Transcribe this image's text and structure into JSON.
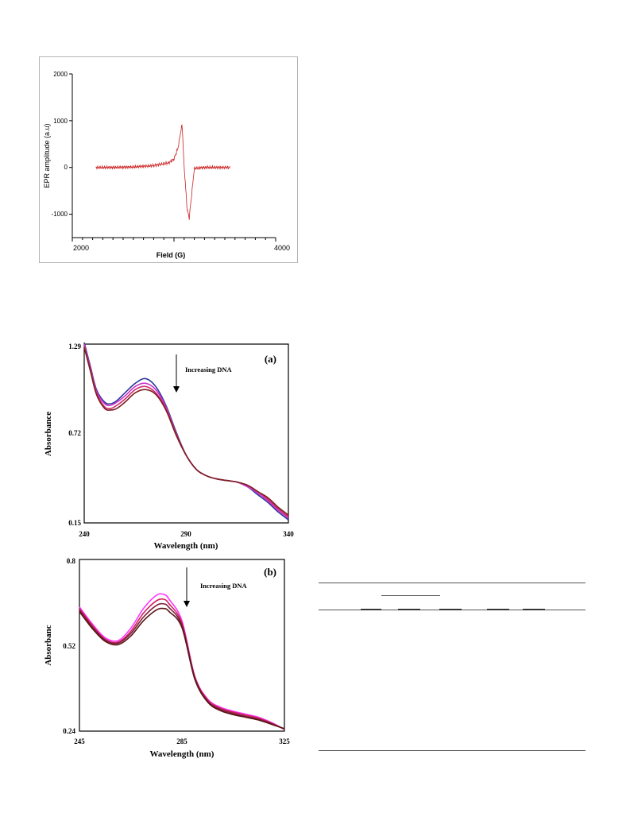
{
  "epr_chart": {
    "ylabel": "EPR amplitude (a.u)",
    "xlabel": "Field (G)",
    "xticks": [
      "2000",
      "4000"
    ],
    "yticks": [
      "2000",
      "1000",
      "0",
      "-1000"
    ],
    "color": "#cc1f1f"
  },
  "uv_a": {
    "tag": "(a)",
    "annotation": "Increasing DNA",
    "ylabel": "Absorbance",
    "xlabel": "Wavelength (nm)",
    "xticks": [
      "240",
      "290",
      "340"
    ],
    "yticks": [
      "1.29",
      "0.72",
      "0.15"
    ]
  },
  "uv_b": {
    "tag": "(b)",
    "annotation": "Increasing DNA",
    "ylabel": "Absorbanc",
    "xlabel": "Wavelength (nm)",
    "xticks": [
      "245",
      "285",
      "325"
    ],
    "yticks": [
      "0.8",
      "0.52",
      "0.24"
    ]
  },
  "chart_data": [
    {
      "type": "line",
      "xlabel": "Field (G)",
      "ylabel": "EPR amplitude (a.u)",
      "xlim": [
        2000,
        4000
      ],
      "ylim": [
        -1500,
        2000
      ],
      "series": [
        {
          "x": [
            2230,
            2400,
            2600,
            2800,
            2950,
            3000,
            3040,
            3060,
            3080,
            3100,
            3130,
            3150,
            3200,
            3300,
            3400,
            3550
          ],
          "y": [
            0,
            0,
            10,
            40,
            100,
            180,
            420,
            680,
            930,
            0,
            -900,
            -1080,
            -20,
            0,
            0,
            0
          ]
        }
      ]
    },
    {
      "type": "line",
      "xlabel": "Wavelength (nm)",
      "ylabel": "Absorbance",
      "xlim": [
        240,
        340
      ],
      "ylim": [
        0.15,
        1.29
      ],
      "x": [
        240,
        243,
        246,
        250,
        253,
        256,
        260,
        265,
        270,
        275,
        280,
        285,
        290,
        295,
        300,
        305,
        310,
        315,
        320,
        325,
        330,
        335,
        340
      ],
      "series": [
        {
          "color": "#2a3a9a",
          "values": [
            1.3,
            1.15,
            1.0,
            0.92,
            0.91,
            0.93,
            0.98,
            1.04,
            1.07,
            1.02,
            0.9,
            0.73,
            0.58,
            0.49,
            0.45,
            0.43,
            0.42,
            0.41,
            0.38,
            0.33,
            0.28,
            0.22,
            0.17
          ]
        },
        {
          "color": "#cc33cc",
          "values": [
            1.29,
            1.14,
            0.99,
            0.91,
            0.9,
            0.92,
            0.96,
            1.02,
            1.04,
            1.0,
            0.89,
            0.72,
            0.58,
            0.49,
            0.45,
            0.43,
            0.42,
            0.41,
            0.38,
            0.34,
            0.29,
            0.23,
            0.18
          ]
        },
        {
          "color": "#d02a6e",
          "values": [
            1.28,
            1.13,
            0.98,
            0.89,
            0.88,
            0.9,
            0.94,
            1.0,
            1.02,
            0.98,
            0.88,
            0.72,
            0.58,
            0.49,
            0.45,
            0.43,
            0.42,
            0.41,
            0.39,
            0.35,
            0.3,
            0.24,
            0.19
          ]
        },
        {
          "color": "#7a1f1f",
          "values": [
            1.27,
            1.12,
            0.97,
            0.88,
            0.87,
            0.88,
            0.92,
            0.98,
            1.0,
            0.97,
            0.87,
            0.71,
            0.58,
            0.49,
            0.45,
            0.43,
            0.42,
            0.41,
            0.39,
            0.35,
            0.31,
            0.25,
            0.2
          ]
        }
      ]
    },
    {
      "type": "line",
      "xlabel": "Wavelength (nm)",
      "ylabel": "Absorbanc",
      "xlim": [
        245,
        325
      ],
      "ylim": [
        0.24,
        0.8
      ],
      "x": [
        245,
        250,
        255,
        260,
        265,
        270,
        275,
        278,
        280,
        285,
        290,
        295,
        300,
        305,
        310,
        315,
        320,
        325
      ],
      "series": [
        {
          "color": "#ff33ff",
          "values": [
            0.645,
            0.59,
            0.545,
            0.535,
            0.575,
            0.64,
            0.683,
            0.686,
            0.67,
            0.6,
            0.42,
            0.345,
            0.318,
            0.305,
            0.295,
            0.285,
            0.268,
            0.246
          ]
        },
        {
          "color": "#d0205a",
          "values": [
            0.64,
            0.585,
            0.54,
            0.53,
            0.565,
            0.625,
            0.665,
            0.67,
            0.655,
            0.592,
            0.418,
            0.342,
            0.315,
            0.302,
            0.292,
            0.282,
            0.266,
            0.246
          ]
        },
        {
          "color": "#7a1f3a",
          "values": [
            0.635,
            0.58,
            0.537,
            0.527,
            0.558,
            0.612,
            0.65,
            0.655,
            0.643,
            0.585,
            0.414,
            0.338,
            0.311,
            0.298,
            0.288,
            0.279,
            0.264,
            0.247
          ]
        },
        {
          "color": "#5a1515",
          "values": [
            0.63,
            0.575,
            0.533,
            0.522,
            0.55,
            0.6,
            0.635,
            0.64,
            0.63,
            0.578,
            0.41,
            0.335,
            0.307,
            0.294,
            0.285,
            0.276,
            0.262,
            0.248
          ]
        }
      ]
    }
  ]
}
